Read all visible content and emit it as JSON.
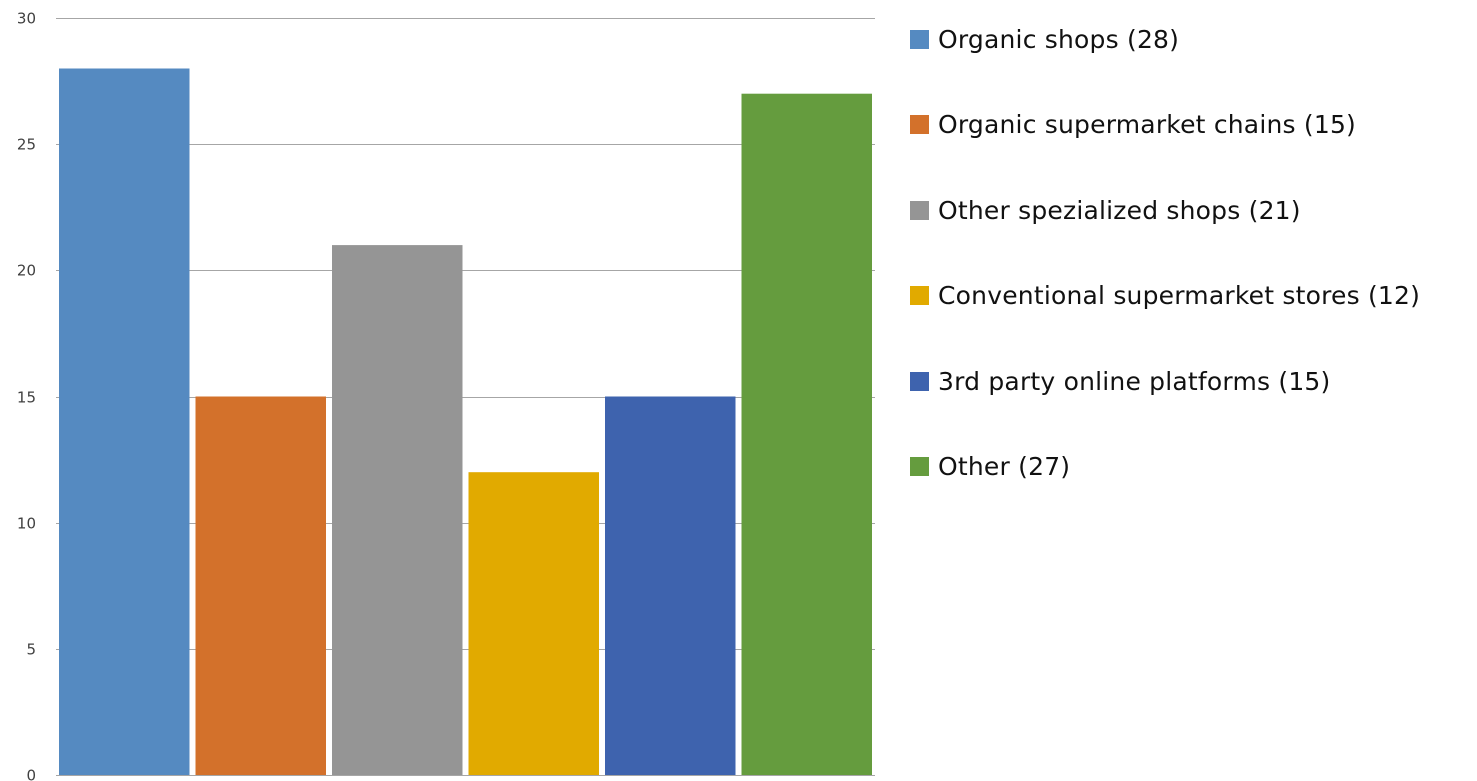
{
  "chart_data": {
    "type": "bar",
    "title": "",
    "xlabel": "",
    "ylabel": "",
    "ylim": [
      0,
      30
    ],
    "yticks": [
      0,
      5,
      10,
      15,
      20,
      25,
      30
    ],
    "grid": true,
    "legend_position": "right",
    "categories": [
      "Organic shops (28)",
      "Organic supermarket chains (15)",
      "Other spezialized shops (21)",
      "Conventional supermarket stores (12)",
      "3rd party online platforms (15)",
      "Other (27)"
    ],
    "values": [
      28,
      15,
      21,
      12,
      15,
      27
    ],
    "colors": [
      "#558ac1",
      "#d3712b",
      "#959595",
      "#e1aa00",
      "#3e63ae",
      "#659c3e"
    ]
  }
}
